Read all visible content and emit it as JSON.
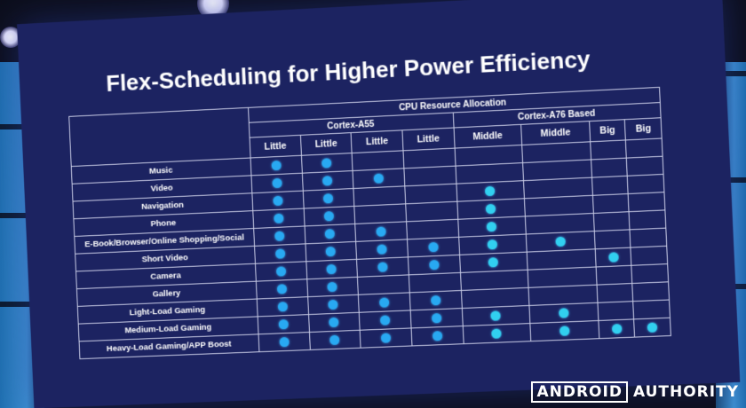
{
  "slide": {
    "title": "Flex-Scheduling for Higher Power Efficiency",
    "group_header": "CPU Resource Allocation",
    "cluster_a55": "Cortex-A55",
    "cluster_a76": "Cortex-A76 Based",
    "cores": [
      "Little",
      "Little",
      "Little",
      "Little",
      "Middle",
      "Middle",
      "Big",
      "Big"
    ],
    "rows": [
      {
        "app": "Music",
        "dots": [
          1,
          1,
          0,
          0,
          0,
          0,
          0,
          0
        ]
      },
      {
        "app": "Video",
        "dots": [
          1,
          1,
          1,
          0,
          0,
          0,
          0,
          0
        ]
      },
      {
        "app": "Navigation",
        "dots": [
          1,
          1,
          0,
          0,
          1,
          0,
          0,
          0
        ]
      },
      {
        "app": "Phone",
        "dots": [
          1,
          1,
          0,
          0,
          1,
          0,
          0,
          0
        ]
      },
      {
        "app": "E-Book/Browser/Online Shopping/Social",
        "dots": [
          1,
          1,
          1,
          0,
          1,
          0,
          0,
          0
        ]
      },
      {
        "app": "Short Video",
        "dots": [
          1,
          1,
          1,
          1,
          1,
          1,
          0,
          0
        ]
      },
      {
        "app": "Camera",
        "dots": [
          1,
          1,
          1,
          1,
          1,
          0,
          1,
          0
        ]
      },
      {
        "app": "Gallery",
        "dots": [
          1,
          1,
          0,
          0,
          0,
          0,
          0,
          0
        ]
      },
      {
        "app": "Light-Load Gaming",
        "dots": [
          1,
          1,
          1,
          1,
          0,
          0,
          0,
          0
        ]
      },
      {
        "app": "Medium-Load Gaming",
        "dots": [
          1,
          1,
          1,
          1,
          1,
          1,
          0,
          0
        ]
      },
      {
        "app": "Heavy-Load Gaming/APP Boost",
        "dots": [
          1,
          1,
          1,
          1,
          1,
          1,
          1,
          1
        ]
      }
    ]
  },
  "watermark": {
    "boxed": "ANDROID",
    "plain": "AUTHORITY"
  },
  "colors": {
    "screen_bg": "#1c2361",
    "dot_blue": "#28a9f2",
    "dot_cyan": "#31d0f0",
    "grid_line": "#c9cce6",
    "side_panel": "#3c8fd0"
  }
}
